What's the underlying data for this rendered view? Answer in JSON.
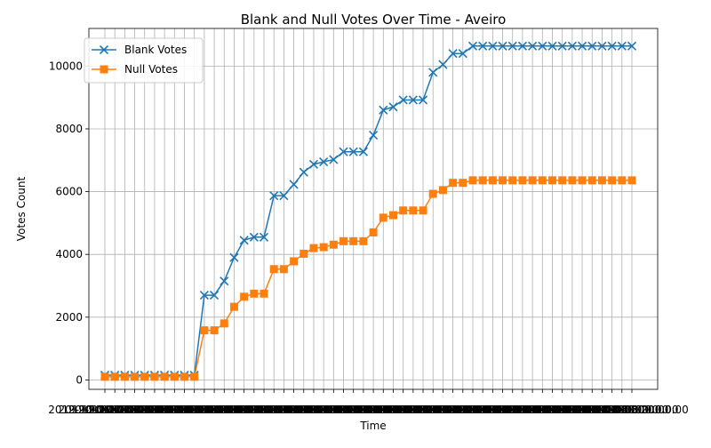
{
  "chart_data": {
    "type": "line",
    "title": "Blank and Null Votes Over Time - Aveiro",
    "xlabel": "Time",
    "ylabel": "Votes Count",
    "ylim": [
      -300,
      11200
    ],
    "yticks": [
      0,
      2000,
      4000,
      6000,
      8000,
      10000
    ],
    "x_tick_label": "2019-10-06 20:00:00",
    "grid": true,
    "legend_position": "upper-left",
    "x": [
      1,
      2,
      3,
      4,
      5,
      6,
      7,
      8,
      9,
      10,
      11,
      12,
      13,
      14,
      15,
      16,
      17,
      18,
      19,
      20,
      21,
      22,
      23,
      24,
      25,
      26,
      27,
      28,
      29,
      30,
      31,
      32,
      33,
      34,
      35,
      36,
      37,
      38,
      39,
      40,
      41,
      42,
      43,
      44,
      45,
      46,
      47,
      48,
      49,
      50,
      51,
      52,
      53,
      54
    ],
    "series": [
      {
        "name": "Blank Votes",
        "color": "#1f77b4",
        "marker": "x",
        "values": [
          150,
          150,
          150,
          150,
          150,
          150,
          150,
          150,
          150,
          150,
          2700,
          2700,
          3150,
          3900,
          4450,
          4550,
          4550,
          5870,
          5870,
          6230,
          6620,
          6870,
          6950,
          7020,
          7270,
          7270,
          7270,
          7800,
          8600,
          8700,
          8920,
          8920,
          8920,
          9800,
          10050,
          10400,
          10400,
          10640,
          10640,
          10640,
          10640,
          10640,
          10640,
          10640,
          10640,
          10640,
          10640,
          10640,
          10640,
          10640,
          10640,
          10640,
          10640,
          10640
        ]
      },
      {
        "name": "Null Votes",
        "color": "#ff7f0e",
        "marker": "square",
        "values": [
          100,
          100,
          100,
          100,
          100,
          100,
          100,
          100,
          100,
          100,
          1580,
          1580,
          1800,
          2330,
          2650,
          2750,
          2750,
          3530,
          3530,
          3780,
          4020,
          4200,
          4230,
          4310,
          4420,
          4420,
          4420,
          4700,
          5170,
          5250,
          5400,
          5400,
          5400,
          5930,
          6050,
          6280,
          6280,
          6360,
          6360,
          6360,
          6360,
          6360,
          6360,
          6360,
          6360,
          6360,
          6360,
          6360,
          6360,
          6360,
          6360,
          6360,
          6360,
          6360
        ]
      }
    ]
  }
}
